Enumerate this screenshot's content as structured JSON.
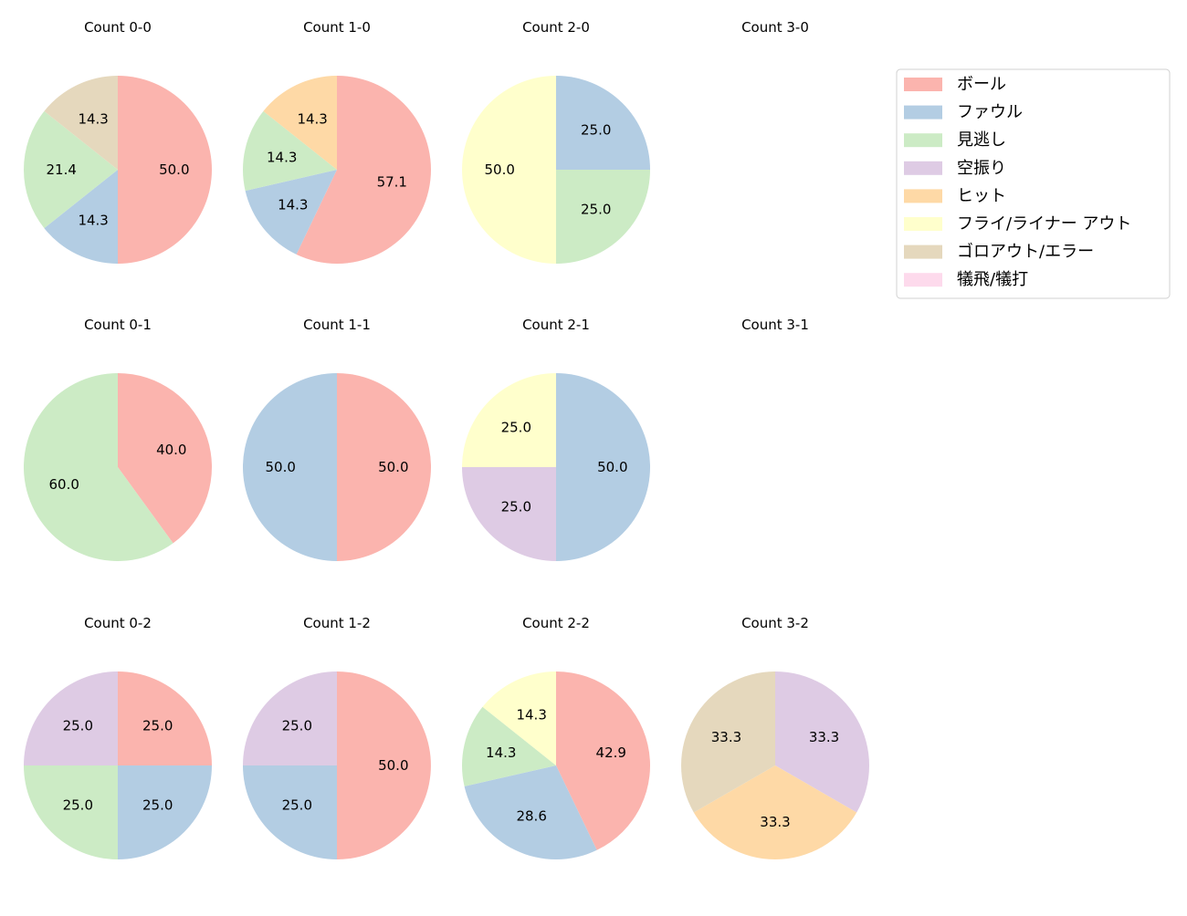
{
  "chart_data": {
    "type": "pie",
    "legend": {
      "placement": "top-right",
      "entries": [
        "ボール",
        "ファウル",
        "見逃し",
        "空振り",
        "ヒット",
        "フライ/ライナー アウト",
        "ゴロアウト/エラー",
        "犠飛/犠打"
      ]
    },
    "colors": [
      "#fbb4ae",
      "#b3cde3",
      "#ccebc5",
      "#decbe4",
      "#fed9a6",
      "#ffffcc",
      "#e5d8bd",
      "#fddaec"
    ],
    "start_angle_deg": 90,
    "direction": "clockwise",
    "label_format": "%.1f",
    "charts": [
      {
        "title": "Count 0-0",
        "values": [
          50.0,
          14.3,
          21.4,
          0,
          0,
          0,
          14.3,
          0
        ]
      },
      {
        "title": "Count 1-0",
        "values": [
          57.1,
          14.3,
          14.3,
          0,
          14.3,
          0,
          0,
          0
        ]
      },
      {
        "title": "Count 2-0",
        "values": [
          0,
          25.0,
          25.0,
          0,
          0,
          50.0,
          0,
          0
        ]
      },
      {
        "title": "Count 3-0",
        "values": []
      },
      {
        "title": "Count 0-1",
        "values": [
          40.0,
          0,
          60.0,
          0,
          0,
          0,
          0,
          0
        ]
      },
      {
        "title": "Count 1-1",
        "values": [
          50.0,
          50.0,
          0,
          0,
          0,
          0,
          0,
          0
        ]
      },
      {
        "title": "Count 2-1",
        "values": [
          0,
          50.0,
          0,
          25.0,
          0,
          25.0,
          0,
          0
        ]
      },
      {
        "title": "Count 3-1",
        "values": []
      },
      {
        "title": "Count 0-2",
        "values": [
          25.0,
          25.0,
          25.0,
          25.0,
          0,
          0,
          0,
          0
        ]
      },
      {
        "title": "Count 1-2",
        "values": [
          50.0,
          25.0,
          0,
          25.0,
          0,
          0,
          0,
          0
        ]
      },
      {
        "title": "Count 2-2",
        "values": [
          42.9,
          28.6,
          14.3,
          0,
          0,
          14.3,
          0,
          0
        ]
      },
      {
        "title": "Count 3-2",
        "values": [
          0,
          0,
          0,
          33.3,
          33.3,
          0,
          33.3,
          0
        ]
      }
    ]
  }
}
